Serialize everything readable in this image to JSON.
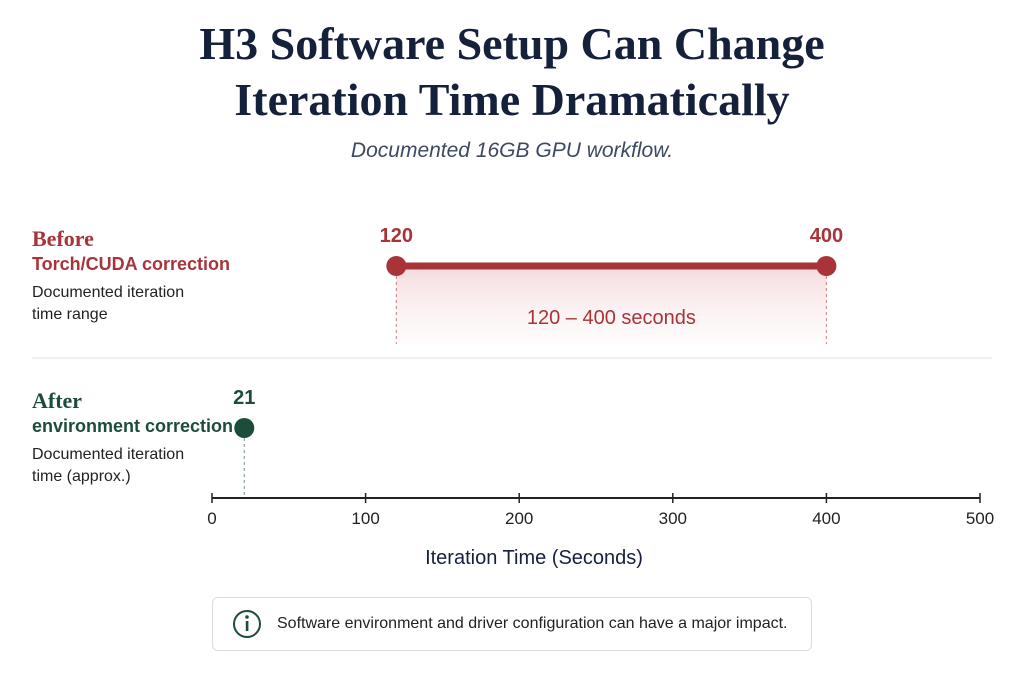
{
  "chart_data": {
    "type": "dumbbell",
    "title": "H3 Software Setup Can Change Iteration Time Dramatically",
    "subtitle": "Documented 16GB GPU workflow.",
    "series": [
      {
        "name": "Before",
        "label": "Torch/CUDA correction",
        "note": "Documented iteration time range",
        "color": "#a8343a",
        "values": [
          120,
          400
        ],
        "range_label": "120 – 400 seconds"
      },
      {
        "name": "After",
        "label": "environment correction",
        "note": "Documented iteration time (approx.)",
        "color": "#1c4d3b",
        "values": [
          21
        ]
      }
    ],
    "xlabel": "Iteration Time (Seconds)",
    "xlim": [
      0,
      500
    ],
    "xticks": [
      0,
      100,
      200,
      300,
      400,
      500
    ],
    "footnote": "Software environment and driver configuration can have a major impact."
  }
}
